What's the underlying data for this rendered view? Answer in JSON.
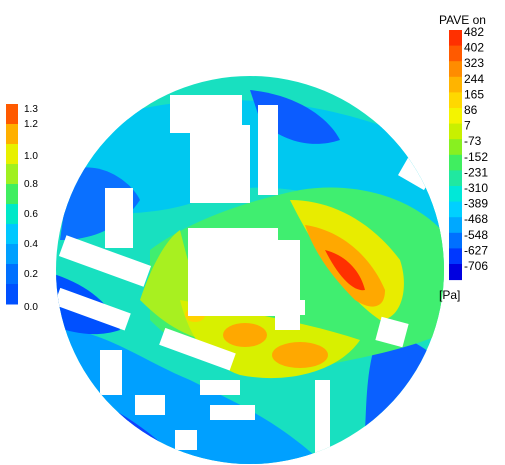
{
  "chart_data": {
    "type": "heatmap",
    "description_of_field": "pressure contour on circular ground domain with white building footprints",
    "colors": {
      "background": "#ffffff",
      "building": "#ffffff",
      "scale": [
        "#0000ff",
        "#0b5cff",
        "#00a8ff",
        "#00e0ff",
        "#00f0c8",
        "#20e8a0",
        "#40ee70",
        "#60f040",
        "#a0f020",
        "#e0f000",
        "#ffd200",
        "#ffa800",
        "#ff7000",
        "#ff3000"
      ]
    },
    "right_colorbar": {
      "title": "PAVE on",
      "unit": "[Pa]",
      "ticks": [
        "482",
        "402",
        "323",
        "244",
        "165",
        "86",
        "7",
        "-73",
        "-152",
        "-231",
        "-310",
        "-389",
        "-468",
        "-548",
        "-627",
        "-706"
      ]
    },
    "left_colorbar": {
      "ticks": [
        "1.3",
        "1.2",
        "1.0",
        "0.8",
        "0.6",
        "0.4",
        "0.2",
        "0.0"
      ]
    }
  }
}
